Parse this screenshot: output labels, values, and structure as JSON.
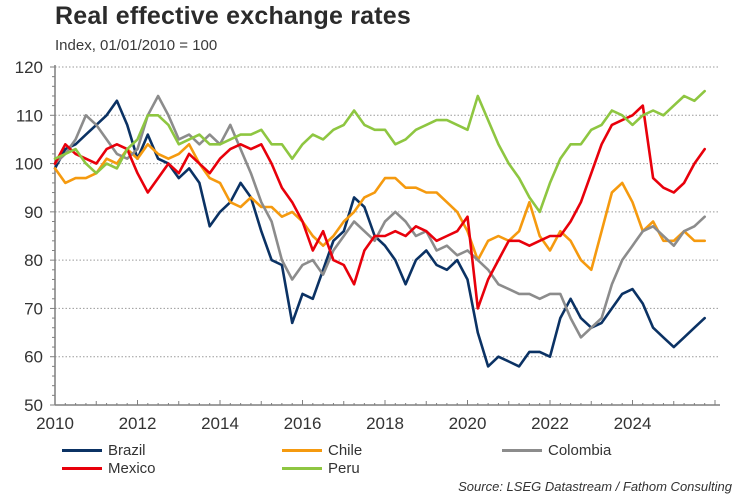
{
  "title": "Real effective exchange rates",
  "subtitle": "Index, 01/01/2010 = 100",
  "source": "Source: LSEG Datastream / Fathom Consulting",
  "chart_data": {
    "type": "line",
    "title": "Real effective exchange rates",
    "subtitle": "Index, 01/01/2010 = 100",
    "xlabel": "",
    "ylabel": "",
    "xlim": [
      2010,
      2026.1
    ],
    "ylim": [
      50,
      120
    ],
    "x_ticks": [
      2010,
      2012,
      2014,
      2016,
      2018,
      2020,
      2022,
      2024
    ],
    "x_tick_labels": [
      "2010",
      "2012",
      "2014",
      "2016",
      "2018",
      "2020",
      "2022",
      "2024"
    ],
    "y_ticks": [
      50,
      60,
      70,
      80,
      90,
      100,
      110,
      120
    ],
    "y_tick_labels": [
      "50",
      "60",
      "70",
      "80",
      "90",
      "100",
      "110",
      "120"
    ],
    "grid": "horizontal-dotted",
    "legend_position": "bottom",
    "x": [
      2010.0,
      2010.25,
      2010.5,
      2010.75,
      2011.0,
      2011.25,
      2011.5,
      2011.75,
      2012.0,
      2012.25,
      2012.5,
      2012.75,
      2013.0,
      2013.25,
      2013.5,
      2013.75,
      2014.0,
      2014.25,
      2014.5,
      2014.75,
      2015.0,
      2015.25,
      2015.5,
      2015.75,
      2016.0,
      2016.25,
      2016.5,
      2016.75,
      2017.0,
      2017.25,
      2017.5,
      2017.75,
      2018.0,
      2018.25,
      2018.5,
      2018.75,
      2019.0,
      2019.25,
      2019.5,
      2019.75,
      2020.0,
      2020.25,
      2020.5,
      2020.75,
      2021.0,
      2021.25,
      2021.5,
      2021.75,
      2022.0,
      2022.25,
      2022.5,
      2022.75,
      2023.0,
      2023.25,
      2023.5,
      2023.75,
      2024.0,
      2024.25,
      2024.5,
      2024.75,
      2025.0,
      2025.25,
      2025.5,
      2025.75
    ],
    "series": [
      {
        "name": "Brazil",
        "color": "#0b3264",
        "values": [
          99,
          103,
          104,
          106,
          108,
          110,
          113,
          108,
          101,
          106,
          101,
          100,
          97,
          99,
          96,
          87,
          90,
          92,
          96,
          93,
          86,
          80,
          79,
          67,
          73,
          72,
          78,
          84,
          86,
          93,
          91,
          85,
          83,
          80,
          75,
          80,
          82,
          79,
          78,
          80,
          76,
          65,
          58,
          60,
          59,
          58,
          61,
          61,
          60,
          68,
          72,
          68,
          66,
          67,
          70,
          73,
          74,
          71,
          66,
          64,
          62,
          64,
          66,
          68
        ]
      },
      {
        "name": "Chile",
        "color": "#f59a0f",
        "values": [
          99,
          96,
          97,
          97,
          98,
          101,
          100,
          103,
          101,
          104,
          102,
          101,
          102,
          104,
          100,
          97,
          96,
          92,
          91,
          93,
          91,
          91,
          89,
          90,
          88,
          85,
          83,
          85,
          88,
          90,
          93,
          94,
          97,
          97,
          95,
          95,
          94,
          94,
          92,
          90,
          86,
          80,
          84,
          85,
          84,
          86,
          92,
          85,
          82,
          86,
          84,
          80,
          78,
          86,
          94,
          96,
          92,
          86,
          88,
          84,
          84,
          86,
          84,
          84
        ]
      },
      {
        "name": "Colombia",
        "color": "#8c8c8c",
        "values": [
          100,
          102,
          105,
          110,
          108,
          105,
          102,
          101,
          103,
          110,
          114,
          110,
          105,
          106,
          104,
          106,
          104,
          108,
          103,
          98,
          92,
          88,
          80,
          76,
          79,
          80,
          77,
          82,
          85,
          88,
          86,
          84,
          88,
          90,
          88,
          85,
          86,
          82,
          83,
          81,
          82,
          80,
          78,
          75,
          74,
          73,
          73,
          72,
          73,
          73,
          68,
          64,
          66,
          68,
          75,
          80,
          83,
          86,
          87,
          85,
          83,
          86,
          87,
          89
        ]
      },
      {
        "name": "Mexico",
        "color": "#e8000b",
        "values": [
          100,
          104,
          102,
          101,
          100,
          103,
          104,
          103,
          98,
          94,
          97,
          100,
          98,
          102,
          100,
          98,
          101,
          103,
          104,
          103,
          104,
          100,
          95,
          92,
          88,
          82,
          86,
          80,
          79,
          75,
          82,
          85,
          85,
          86,
          85,
          87,
          86,
          84,
          85,
          86,
          89,
          70,
          76,
          80,
          84,
          84,
          83,
          84,
          85,
          85,
          88,
          92,
          98,
          104,
          108,
          109,
          110,
          112,
          97,
          95,
          94,
          96,
          100,
          103
        ]
      },
      {
        "name": "Peru",
        "color": "#8ec641",
        "values": [
          101,
          102,
          103,
          100,
          98,
          100,
          99,
          103,
          105,
          110,
          110,
          108,
          104,
          105,
          106,
          104,
          104,
          105,
          106,
          106,
          107,
          104,
          104,
          101,
          104,
          106,
          105,
          107,
          108,
          111,
          108,
          107,
          107,
          104,
          105,
          107,
          108,
          109,
          109,
          108,
          107,
          114,
          109,
          104,
          100,
          97,
          93,
          90,
          96,
          101,
          104,
          104,
          107,
          108,
          111,
          110,
          108,
          110,
          111,
          110,
          112,
          114,
          113,
          115
        ]
      }
    ]
  },
  "legend": [
    {
      "label": "Brazil",
      "color": "#0b3264"
    },
    {
      "label": "Chile",
      "color": "#f59a0f"
    },
    {
      "label": "Colombia",
      "color": "#8c8c8c"
    },
    {
      "label": "Mexico",
      "color": "#e8000b"
    },
    {
      "label": "Peru",
      "color": "#8ec641"
    }
  ]
}
